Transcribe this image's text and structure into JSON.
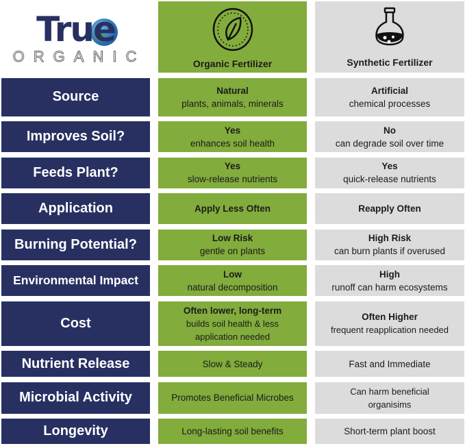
{
  "logo": {
    "word": "True",
    "sub": "ORGANIC"
  },
  "headers": {
    "organic": "Organic Fertilizer",
    "synthetic": "Synthetic Fertilizer",
    "organic_icon": "leaf-badge-icon",
    "synthetic_icon": "flask-icon"
  },
  "colors": {
    "label_bg": "#283062",
    "organic_bg": "#82ac3c",
    "synthetic_bg": "#dcdcdc"
  },
  "rows": [
    {
      "label": "Source",
      "organic": {
        "title": "Natural",
        "detail": "plants, animals, minerals"
      },
      "synthetic": {
        "title": "Artificial",
        "detail": "chemical processes"
      }
    },
    {
      "label": "Improves Soil?",
      "organic": {
        "title": "Yes",
        "detail": "enhances soil health"
      },
      "synthetic": {
        "title": "No",
        "detail": "can degrade soil over time"
      }
    },
    {
      "label": "Feeds Plant?",
      "organic": {
        "title": "Yes",
        "detail": "slow-release nutrients"
      },
      "synthetic": {
        "title": "Yes",
        "detail": "quick-release nutrients"
      }
    },
    {
      "label": "Application",
      "organic": {
        "title": "Apply Less Often",
        "detail": ""
      },
      "synthetic": {
        "title": "Reapply Often",
        "detail": ""
      }
    },
    {
      "label": "Burning Potential?",
      "organic": {
        "title": "Low Risk",
        "detail": "gentle on plants"
      },
      "synthetic": {
        "title": "High Risk",
        "detail": "can burn plants if overused"
      }
    },
    {
      "label": "Environmental Impact",
      "organic": {
        "title": "Low",
        "detail": "natural decomposition"
      },
      "synthetic": {
        "title": "High",
        "detail": "runoff can harm ecosystems"
      }
    },
    {
      "label": "Cost",
      "organic": {
        "title": "Often lower, long-term",
        "detail": "builds soil health & less application needed"
      },
      "synthetic": {
        "title": "Often Higher",
        "detail": "frequent reapplication needed"
      }
    },
    {
      "label": "Nutrient Release",
      "organic": {
        "title": "",
        "detail": "Slow & Steady"
      },
      "synthetic": {
        "title": "",
        "detail": "Fast and Immediate"
      }
    },
    {
      "label": "Microbial Activity",
      "organic": {
        "title": "",
        "detail": "Promotes Beneficial Microbes"
      },
      "synthetic": {
        "title": "",
        "detail": "Can harm beneficial organisims"
      }
    },
    {
      "label": "Longevity",
      "organic": {
        "title": "",
        "detail": "Long-lasting soil benefits"
      },
      "synthetic": {
        "title": "",
        "detail": "Short-term plant boost"
      }
    }
  ]
}
